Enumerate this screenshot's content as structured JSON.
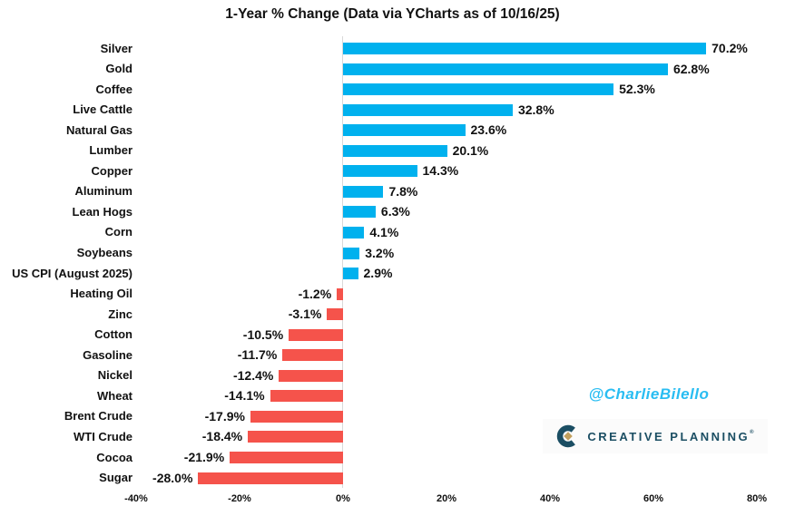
{
  "title": "1-Year % Change (Data via YCharts as of 10/16/25)",
  "chart_data": {
    "type": "bar",
    "orientation": "horizontal",
    "title": "1-Year % Change (Data via YCharts as of 10/16/25)",
    "categories": [
      "Silver",
      "Gold",
      "Coffee",
      "Live Cattle",
      "Natural Gas",
      "Lumber",
      "Copper",
      "Aluminum",
      "Lean Hogs",
      "Corn",
      "Soybeans",
      "US CPI (August 2025)",
      "Heating Oil",
      "Zinc",
      "Cotton",
      "Gasoline",
      "Nickel",
      "Wheat",
      "Brent Crude",
      "WTI Crude",
      "Cocoa",
      "Sugar"
    ],
    "values": [
      70.2,
      62.8,
      52.3,
      32.8,
      23.6,
      20.1,
      14.3,
      7.8,
      6.3,
      4.1,
      3.2,
      2.9,
      -1.2,
      -3.1,
      -10.5,
      -11.7,
      -12.4,
      -14.1,
      -17.9,
      -18.4,
      -21.9,
      -28.0
    ],
    "value_labels": [
      "70.2%",
      "62.8%",
      "52.3%",
      "32.8%",
      "23.6%",
      "20.1%",
      "14.3%",
      "7.8%",
      "6.3%",
      "4.1%",
      "3.2%",
      "2.9%",
      "-1.2%",
      "-3.1%",
      "-10.5%",
      "-11.7%",
      "-12.4%",
      "-14.1%",
      "-17.9%",
      "-18.4%",
      "-21.9%",
      "-28.0%"
    ],
    "x_tick_labels": [
      "-40%",
      "-20%",
      "0%",
      "20%",
      "40%",
      "60%",
      "80%"
    ],
    "x_tick_values": [
      -40,
      -20,
      0,
      20,
      40,
      60,
      80
    ],
    "xlim": [
      -40,
      80
    ],
    "grid": false,
    "legend": "none",
    "colors": {
      "positive_bar": "#00b1ee",
      "negative_bar": "#f5534b",
      "zero_axis_line": "#d9d9d9",
      "text": "#111111"
    }
  },
  "watermark": {
    "handle": "@CharlieBilello",
    "handle_color": "#29bdf2"
  },
  "logo": {
    "text": "CREATIVE PLANNING",
    "registered_mark": "®",
    "navy": "#1b4e63",
    "gold": "#c2a05e"
  }
}
